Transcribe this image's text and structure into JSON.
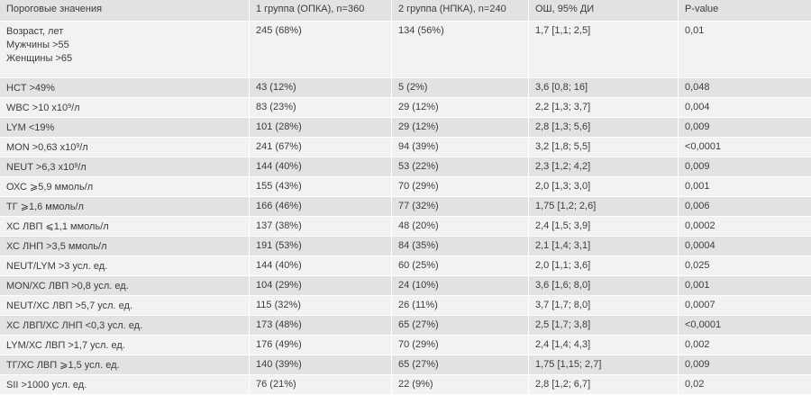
{
  "headers": [
    "Пороговые значения",
    "1 группа (ОПКА), n=360",
    "2 группа (НПКА), n=240",
    "ОШ, 95% ДИ",
    "P-value"
  ],
  "rows": [
    {
      "label": [
        "Возраст, лет",
        "Мужчины >55",
        "Женщины >65"
      ],
      "g1": "245 (68%)",
      "g2": "134 (56%)",
      "or": "1,7 [1,1; 2,5]",
      "p": "0,01"
    },
    {
      "label": [
        "HCT >49%"
      ],
      "g1": "43 (12%)",
      "g2": "5 (2%)",
      "or": "3,6 [0,8; 16]",
      "p": "0,048"
    },
    {
      "label_pre": "WBC >10 x10",
      "label_sup": "9",
      "label_post": "/л",
      "g1": "83 (23%)",
      "g2": "29 (12%)",
      "or": "2,2 [1,3; 3,7]",
      "p": "0,004"
    },
    {
      "label": [
        "LYM <19%"
      ],
      "g1": "101 (28%)",
      "g2": "29 (12%)",
      "or": "2,8 [1,3; 5,6]",
      "p": "0,009"
    },
    {
      "label_pre": "MON >0,63 x10",
      "label_sup": "9",
      "label_post": "/л",
      "g1": "241 (67%)",
      "g2": "94 (39%)",
      "or": "3,2 [1,8; 5,5]",
      "p": "<0,0001"
    },
    {
      "label_pre": "NEUT >6,3 x10",
      "label_sup": "9",
      "label_post": "/л",
      "g1": "144 (40%)",
      "g2": "53 (22%)",
      "or": "2,3 [1,2; 4,2]",
      "p": "0,009"
    },
    {
      "label": [
        "ОХС ⩾5,9 ммоль/л"
      ],
      "g1": "155 (43%)",
      "g2": "70 (29%)",
      "or": "2,0 [1,3; 3,0]",
      "p": "0,001"
    },
    {
      "label": [
        "ТГ ⩾1,6 ммоль/л"
      ],
      "g1": "166 (46%)",
      "g2": "77 (32%)",
      "or": "1,75 [1,2; 2,6]",
      "p": "0,006"
    },
    {
      "label": [
        "ХС ЛВП ⩽1,1 ммоль/л"
      ],
      "g1": "137 (38%)",
      "g2": "48 (20%)",
      "or": "2,4 [1,5; 3,9]",
      "p": "0,0002"
    },
    {
      "label": [
        "ХС ЛНП >3,5 ммоль/л"
      ],
      "g1": "191 (53%)",
      "g2": "84 (35%)",
      "or": "2,1 [1,4; 3,1]",
      "p": "0,0004"
    },
    {
      "label": [
        "NEUT/LYM >3 усл. ед."
      ],
      "g1": "144 (40%)",
      "g2": "60 (25%)",
      "or": "2,0 [1,1; 3,6]",
      "p": "0,025"
    },
    {
      "label": [
        "MON/ХС ЛВП >0,8 усл. ед."
      ],
      "g1": "104 (29%)",
      "g2": "24 (10%)",
      "or": "3,6 [1,6; 8,0]",
      "p": "0,001"
    },
    {
      "label": [
        "NEUT/ХС ЛВП >5,7 усл. ед."
      ],
      "g1": "115 (32%)",
      "g2": "26 (11%)",
      "or": "3,7 [1,7; 8,0]",
      "p": "0,0007"
    },
    {
      "label": [
        "ХС ЛВП/ХС ЛНП <0,3 усл. ед."
      ],
      "g1": "173 (48%)",
      "g2": "65 (27%)",
      "or": "2,5 [1,7; 3,8]",
      "p": "<0,0001"
    },
    {
      "label": [
        "LYM/ХС ЛВП >1,7 усл. ед."
      ],
      "g1": "176 (49%)",
      "g2": "70 (29%)",
      "or": "2,4 [1,4; 4,3]",
      "p": "0,002"
    },
    {
      "label": [
        "ТГ/ХС ЛВП ⩾1,5 усл. ед."
      ],
      "g1": "140 (39%)",
      "g2": "65 (27%)",
      "or": "1,75 [1,15; 2,7]",
      "p": "0,009"
    },
    {
      "label": [
        "SII >1000 усл. ед."
      ],
      "g1": "76 (21%)",
      "g2": "22 (9%)",
      "or": "2,8 [1,2; 6,7]",
      "p": "0,02"
    }
  ]
}
